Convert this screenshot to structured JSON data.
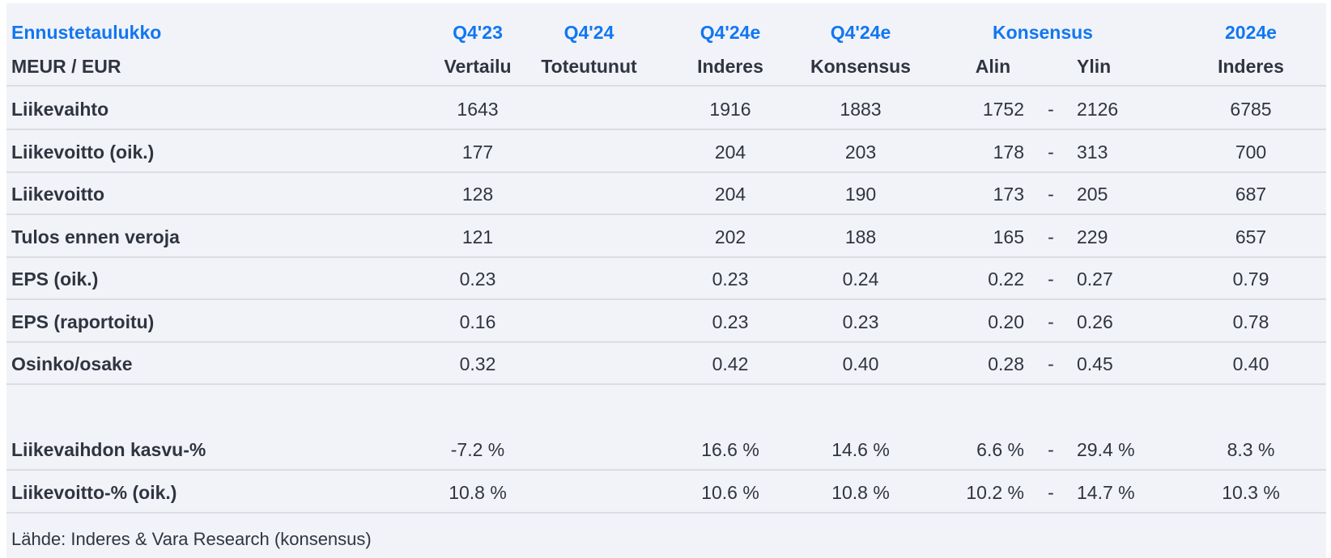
{
  "header": {
    "title": "Ennustetaulukko",
    "unit": "MEUR / EUR",
    "top": [
      "Q4'23",
      "Q4'24",
      "Q4'24e",
      "Q4'24e",
      "Konsensus",
      "2024e"
    ],
    "sub": [
      "Vertailu",
      "Toteutunut",
      "Inderes",
      "Konsensus",
      "Alin",
      "Ylin",
      "Inderes"
    ]
  },
  "rows": [
    {
      "label": "Liikevaihto",
      "q423": "1643",
      "q424": "",
      "inderes": "1916",
      "konsensus": "1883",
      "alin": "1752",
      "ylin": "2126",
      "y2024": "6785"
    },
    {
      "label": "Liikevoitto (oik.)",
      "q423": "177",
      "q424": "",
      "inderes": "204",
      "konsensus": "203",
      "alin": "178",
      "ylin": "313",
      "y2024": "700"
    },
    {
      "label": "Liikevoitto",
      "q423": "128",
      "q424": "",
      "inderes": "204",
      "konsensus": "190",
      "alin": "173",
      "ylin": "205",
      "y2024": "687"
    },
    {
      "label": "Tulos ennen veroja",
      "q423": "121",
      "q424": "",
      "inderes": "202",
      "konsensus": "188",
      "alin": "165",
      "ylin": "229",
      "y2024": "657"
    },
    {
      "label": "EPS (oik.)",
      "q423": "0.23",
      "q424": "",
      "inderes": "0.23",
      "konsensus": "0.24",
      "alin": "0.22",
      "ylin": "0.27",
      "y2024": "0.79"
    },
    {
      "label": "EPS (raportoitu)",
      "q423": "0.16",
      "q424": "",
      "inderes": "0.23",
      "konsensus": "0.23",
      "alin": "0.20",
      "ylin": "0.26",
      "y2024": "0.78"
    },
    {
      "label": "Osinko/osake",
      "q423": "0.32",
      "q424": "",
      "inderes": "0.42",
      "konsensus": "0.40",
      "alin": "0.28",
      "ylin": "0.45",
      "y2024": "0.40"
    }
  ],
  "pct_rows": [
    {
      "label": "Liikevaihdon kasvu-%",
      "q423": "-7.2 %",
      "q424": "",
      "inderes": "16.6 %",
      "konsensus": "14.6 %",
      "alin": "6.6 %",
      "ylin": "29.4 %",
      "y2024": "8.3 %"
    },
    {
      "label": "Liikevoitto-% (oik.)",
      "q423": "10.8 %",
      "q424": "",
      "inderes": "10.6 %",
      "konsensus": "10.8 %",
      "alin": "10.2 %",
      "ylin": "14.7 %",
      "y2024": "10.3 %"
    }
  ],
  "dash": "-",
  "source": "Lähde: Inderes & Vara Research  (konsensus)",
  "colors": {
    "accent": "#1177f2",
    "text": "#2f3540",
    "background": "#f2f3f8"
  }
}
